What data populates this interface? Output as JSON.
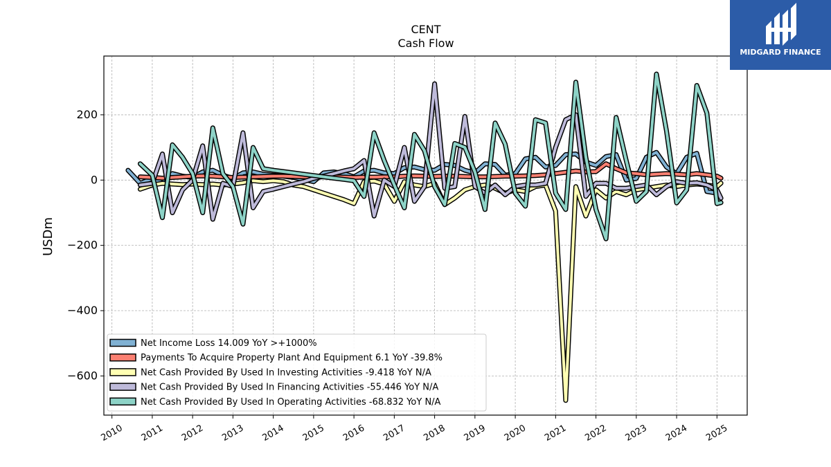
{
  "logo": {
    "text": "MIDGARD FINANCE"
  },
  "chart_data": {
    "type": "line",
    "title": "CENT",
    "subtitle": "Cash Flow",
    "ylabel": "USDm",
    "xlabel": "",
    "xlim": [
      2009.8,
      2025.75
    ],
    "ylim": [
      -720,
      380
    ],
    "yticks": [
      200,
      0,
      -200,
      -400,
      -600
    ],
    "ytick_labels": [
      "200",
      "0",
      "−200",
      "−400",
      "−600"
    ],
    "xticks": [
      2010,
      2011,
      2012,
      2013,
      2014,
      2015,
      2016,
      2017,
      2018,
      2019,
      2020,
      2021,
      2022,
      2023,
      2024,
      2025
    ],
    "xtick_labels": [
      "2010",
      "2011",
      "2012",
      "2013",
      "2014",
      "2015",
      "2016",
      "2017",
      "2018",
      "2019",
      "2020",
      "2021",
      "2022",
      "2023",
      "2024",
      "2025"
    ],
    "grid": true,
    "legend_position": "lower-left",
    "series": [
      {
        "name": "Net Income Loss  14.009 YoY >+1000%",
        "color": "#80b1d3",
        "points": [
          [
            2010.4,
            30
          ],
          [
            2010.7,
            -10
          ],
          [
            2011.0,
            5
          ],
          [
            2011.25,
            -8
          ],
          [
            2011.5,
            20
          ],
          [
            2011.75,
            12
          ],
          [
            2012.0,
            8
          ],
          [
            2012.25,
            25
          ],
          [
            2012.5,
            30
          ],
          [
            2012.75,
            15
          ],
          [
            2013.0,
            5
          ],
          [
            2013.25,
            22
          ],
          [
            2013.5,
            25
          ],
          [
            2013.75,
            18
          ],
          [
            2014.0,
            15
          ],
          [
            2014.25,
            12
          ],
          [
            2014.5,
            8
          ],
          [
            2014.75,
            2
          ],
          [
            2015.0,
            -5
          ],
          [
            2015.25,
            22
          ],
          [
            2015.5,
            25
          ],
          [
            2015.75,
            20
          ],
          [
            2016.0,
            10
          ],
          [
            2016.25,
            28
          ],
          [
            2016.5,
            30
          ],
          [
            2016.75,
            22
          ],
          [
            2017.0,
            20
          ],
          [
            2017.25,
            38
          ],
          [
            2017.5,
            40
          ],
          [
            2017.75,
            32
          ],
          [
            2018.0,
            30
          ],
          [
            2018.25,
            48
          ],
          [
            2018.5,
            45
          ],
          [
            2018.75,
            30
          ],
          [
            2019.0,
            22
          ],
          [
            2019.25,
            50
          ],
          [
            2019.5,
            48
          ],
          [
            2019.75,
            15
          ],
          [
            2020.0,
            20
          ],
          [
            2020.25,
            65
          ],
          [
            2020.5,
            70
          ],
          [
            2020.75,
            40
          ],
          [
            2021.0,
            45
          ],
          [
            2021.25,
            78
          ],
          [
            2021.5,
            80
          ],
          [
            2021.75,
            55
          ],
          [
            2022.0,
            45
          ],
          [
            2022.25,
            72
          ],
          [
            2022.5,
            78
          ],
          [
            2022.75,
            0
          ],
          [
            2023.0,
            5
          ],
          [
            2023.25,
            70
          ],
          [
            2023.5,
            85
          ],
          [
            2023.75,
            40
          ],
          [
            2024.0,
            20
          ],
          [
            2024.25,
            70
          ],
          [
            2024.5,
            82
          ],
          [
            2024.75,
            -35
          ],
          [
            2025.0,
            -40
          ]
        ]
      },
      {
        "name": "Payments To Acquire Property Plant And Equipment  6.1 YoY -39.8%",
        "color": "#fb8072",
        "points": [
          [
            2010.7,
            10
          ],
          [
            2011.0,
            8
          ],
          [
            2011.25,
            6
          ],
          [
            2011.5,
            8
          ],
          [
            2011.75,
            10
          ],
          [
            2012.0,
            12
          ],
          [
            2012.25,
            13
          ],
          [
            2012.5,
            12
          ],
          [
            2012.75,
            10
          ],
          [
            2013.0,
            8
          ],
          [
            2013.25,
            9
          ],
          [
            2013.5,
            10
          ],
          [
            2013.75,
            11
          ],
          [
            2014.0,
            12
          ],
          [
            2014.25,
            12
          ],
          [
            2014.5,
            11
          ],
          [
            2014.75,
            10
          ],
          [
            2015.0,
            9
          ],
          [
            2015.25,
            10
          ],
          [
            2015.5,
            10
          ],
          [
            2015.75,
            9
          ],
          [
            2016.0,
            8
          ],
          [
            2016.25,
            9
          ],
          [
            2016.5,
            9
          ],
          [
            2016.75,
            10
          ],
          [
            2017.0,
            10
          ],
          [
            2017.25,
            12
          ],
          [
            2017.5,
            13
          ],
          [
            2017.75,
            12
          ],
          [
            2018.0,
            11
          ],
          [
            2018.25,
            12
          ],
          [
            2018.5,
            12
          ],
          [
            2018.75,
            11
          ],
          [
            2019.0,
            10
          ],
          [
            2019.25,
            10
          ],
          [
            2019.5,
            11
          ],
          [
            2019.75,
            12
          ],
          [
            2020.0,
            12
          ],
          [
            2020.25,
            13
          ],
          [
            2020.5,
            14
          ],
          [
            2020.75,
            16
          ],
          [
            2021.0,
            20
          ],
          [
            2021.25,
            24
          ],
          [
            2021.5,
            28
          ],
          [
            2021.75,
            25
          ],
          [
            2022.0,
            26
          ],
          [
            2022.25,
            50
          ],
          [
            2022.5,
            35
          ],
          [
            2022.75,
            22
          ],
          [
            2023.0,
            20
          ],
          [
            2023.25,
            16
          ],
          [
            2023.5,
            18
          ],
          [
            2023.75,
            20
          ],
          [
            2024.0,
            18
          ],
          [
            2024.25,
            16
          ],
          [
            2024.5,
            20
          ],
          [
            2024.75,
            16
          ],
          [
            2025.0,
            12
          ],
          [
            2025.1,
            6
          ]
        ]
      },
      {
        "name": "Net Cash Provided By Used In Investing Activities  -9.418 YoY N/A",
        "color": "#ffffb3",
        "points": [
          [
            2010.7,
            -28
          ],
          [
            2011.0,
            -15
          ],
          [
            2011.25,
            -10
          ],
          [
            2011.5,
            -12
          ],
          [
            2011.75,
            -14
          ],
          [
            2012.0,
            -12
          ],
          [
            2012.25,
            -14
          ],
          [
            2012.5,
            -12
          ],
          [
            2012.75,
            -15
          ],
          [
            2013.0,
            -12
          ],
          [
            2013.25,
            -8
          ],
          [
            2013.5,
            -2
          ],
          [
            2013.75,
            -5
          ],
          [
            2014.0,
            -2
          ],
          [
            2014.25,
            -5
          ],
          [
            2014.5,
            -15
          ],
          [
            2014.75,
            -20
          ],
          [
            2015.0,
            -30
          ],
          [
            2015.25,
            -40
          ],
          [
            2015.5,
            -50
          ],
          [
            2015.75,
            -60
          ],
          [
            2016.0,
            -72
          ],
          [
            2016.25,
            -5
          ],
          [
            2016.5,
            -3
          ],
          [
            2016.75,
            -12
          ],
          [
            2017.0,
            -65
          ],
          [
            2017.25,
            -5
          ],
          [
            2017.5,
            -15
          ],
          [
            2017.75,
            -20
          ],
          [
            2018.0,
            -10
          ],
          [
            2018.25,
            -75
          ],
          [
            2018.5,
            -55
          ],
          [
            2018.75,
            -30
          ],
          [
            2019.0,
            -20
          ],
          [
            2019.25,
            -15
          ],
          [
            2019.5,
            -25
          ],
          [
            2019.75,
            -40
          ],
          [
            2020.0,
            -30
          ],
          [
            2020.25,
            -35
          ],
          [
            2020.5,
            -20
          ],
          [
            2020.75,
            -15
          ],
          [
            2021.0,
            -95
          ],
          [
            2021.25,
            -675
          ],
          [
            2021.5,
            -20
          ],
          [
            2021.75,
            -110
          ],
          [
            2022.0,
            -30
          ],
          [
            2022.25,
            -55
          ],
          [
            2022.5,
            -35
          ],
          [
            2022.75,
            -45
          ],
          [
            2023.0,
            -30
          ],
          [
            2023.25,
            -25
          ],
          [
            2023.5,
            -20
          ],
          [
            2023.75,
            -15
          ],
          [
            2024.0,
            -20
          ],
          [
            2024.25,
            -15
          ],
          [
            2024.5,
            -12
          ],
          [
            2024.75,
            -15
          ],
          [
            2025.0,
            -20
          ],
          [
            2025.1,
            -9.4
          ]
        ]
      },
      {
        "name": "Net Cash Provided By Used In Financing Activities  -55.446 YoY N/A",
        "color": "#bebada",
        "points": [
          [
            2010.7,
            -15
          ],
          [
            2011.0,
            -10
          ],
          [
            2011.25,
            80
          ],
          [
            2011.5,
            -100
          ],
          [
            2011.75,
            -30
          ],
          [
            2012.0,
            0
          ],
          [
            2012.25,
            105
          ],
          [
            2012.5,
            -120
          ],
          [
            2012.75,
            -10
          ],
          [
            2013.0,
            -20
          ],
          [
            2013.25,
            145
          ],
          [
            2013.5,
            -85
          ],
          [
            2013.75,
            -35
          ],
          [
            2014.0,
            -28
          ],
          [
            2014.25,
            -20
          ],
          [
            2014.5,
            -12
          ],
          [
            2014.75,
            -5
          ],
          [
            2015.0,
            5
          ],
          [
            2015.25,
            12
          ],
          [
            2015.5,
            20
          ],
          [
            2015.75,
            28
          ],
          [
            2016.0,
            35
          ],
          [
            2016.25,
            60
          ],
          [
            2016.5,
            -110
          ],
          [
            2016.75,
            0
          ],
          [
            2017.0,
            -20
          ],
          [
            2017.25,
            100
          ],
          [
            2017.5,
            -65
          ],
          [
            2017.75,
            -20
          ],
          [
            2018.0,
            295
          ],
          [
            2018.25,
            -25
          ],
          [
            2018.5,
            -20
          ],
          [
            2018.75,
            195
          ],
          [
            2019.0,
            -20
          ],
          [
            2019.25,
            -40
          ],
          [
            2019.5,
            -15
          ],
          [
            2019.75,
            -45
          ],
          [
            2020.0,
            -20
          ],
          [
            2020.25,
            -15
          ],
          [
            2020.5,
            -15
          ],
          [
            2020.75,
            -10
          ],
          [
            2021.0,
            100
          ],
          [
            2021.25,
            185
          ],
          [
            2021.5,
            200
          ],
          [
            2021.75,
            -50
          ],
          [
            2022.0,
            -10
          ],
          [
            2022.25,
            -10
          ],
          [
            2022.5,
            -25
          ],
          [
            2022.75,
            -25
          ],
          [
            2023.0,
            -20
          ],
          [
            2023.25,
            -15
          ],
          [
            2023.5,
            -45
          ],
          [
            2023.75,
            -20
          ],
          [
            2024.0,
            -5
          ],
          [
            2024.25,
            -10
          ],
          [
            2024.5,
            -8
          ],
          [
            2024.75,
            -15
          ],
          [
            2025.0,
            -30
          ],
          [
            2025.1,
            -55.4
          ]
        ]
      },
      {
        "name": "Net Cash Provided By Used In Operating Activities  -68.832 YoY N/A",
        "color": "#8dd3c7",
        "points": [
          [
            2010.7,
            50
          ],
          [
            2011.0,
            15
          ],
          [
            2011.25,
            -115
          ],
          [
            2011.5,
            108
          ],
          [
            2011.75,
            70
          ],
          [
            2012.0,
            20
          ],
          [
            2012.25,
            -100
          ],
          [
            2012.5,
            160
          ],
          [
            2012.75,
            20
          ],
          [
            2013.0,
            -20
          ],
          [
            2013.25,
            -135
          ],
          [
            2013.5,
            100
          ],
          [
            2013.75,
            35
          ],
          [
            2014.0,
            30
          ],
          [
            2014.25,
            26
          ],
          [
            2014.5,
            22
          ],
          [
            2014.75,
            18
          ],
          [
            2015.0,
            14
          ],
          [
            2015.25,
            10
          ],
          [
            2015.5,
            6
          ],
          [
            2015.75,
            2
          ],
          [
            2016.0,
            -2
          ],
          [
            2016.25,
            -50
          ],
          [
            2016.5,
            145
          ],
          [
            2016.75,
            60
          ],
          [
            2017.0,
            -15
          ],
          [
            2017.25,
            -85
          ],
          [
            2017.5,
            140
          ],
          [
            2017.75,
            90
          ],
          [
            2018.0,
            -20
          ],
          [
            2018.25,
            -75
          ],
          [
            2018.5,
            112
          ],
          [
            2018.75,
            100
          ],
          [
            2019.0,
            25
          ],
          [
            2019.25,
            -90
          ],
          [
            2019.5,
            175
          ],
          [
            2019.75,
            110
          ],
          [
            2020.0,
            -40
          ],
          [
            2020.25,
            -80
          ],
          [
            2020.5,
            185
          ],
          [
            2020.75,
            175
          ],
          [
            2021.0,
            -40
          ],
          [
            2021.25,
            -90
          ],
          [
            2021.5,
            300
          ],
          [
            2021.75,
            70
          ],
          [
            2022.0,
            -90
          ],
          [
            2022.25,
            -180
          ],
          [
            2022.5,
            192
          ],
          [
            2022.75,
            60
          ],
          [
            2023.0,
            -65
          ],
          [
            2023.25,
            -35
          ],
          [
            2023.5,
            325
          ],
          [
            2023.75,
            150
          ],
          [
            2024.0,
            -70
          ],
          [
            2024.25,
            -30
          ],
          [
            2024.5,
            290
          ],
          [
            2024.75,
            205
          ],
          [
            2025.0,
            -72
          ],
          [
            2025.1,
            -68.8
          ]
        ]
      }
    ]
  }
}
